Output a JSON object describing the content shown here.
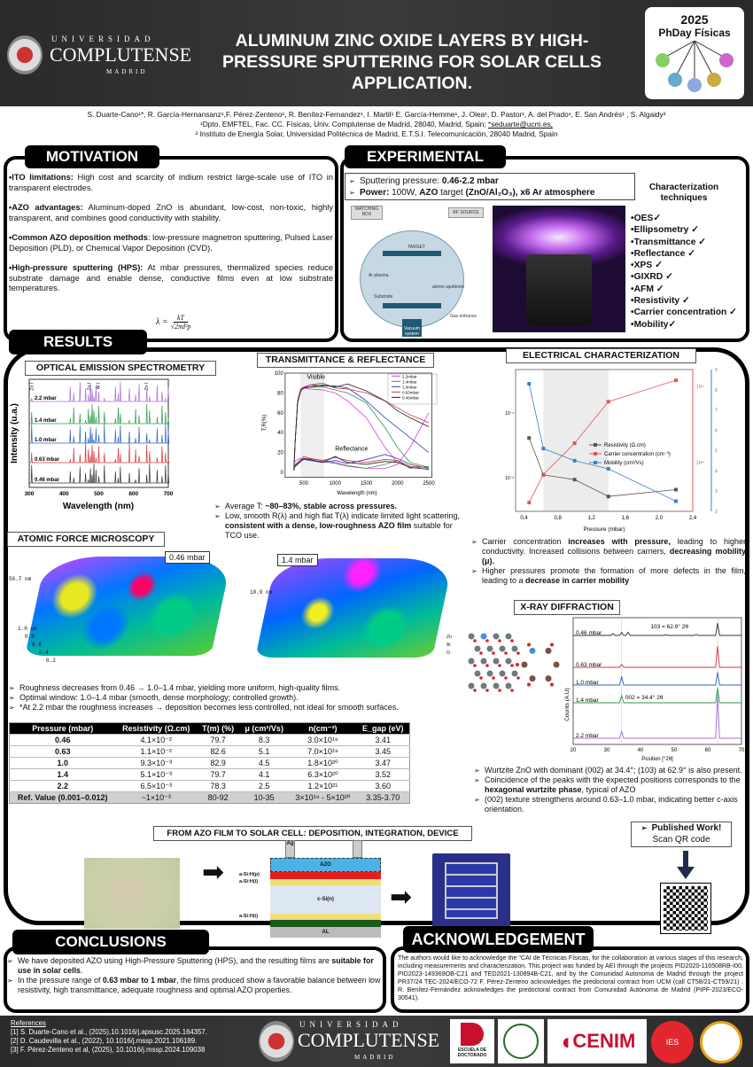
{
  "header": {
    "title": "ALUMINUM ZINC OXIDE LAYERS BY HIGH-PRESSURE SPUTTERING FOR SOLAR CELLS APPLICATION.",
    "logo_univ": "UNIVERSIDAD",
    "logo_name": "COMPLUTENSE",
    "logo_city": "MADRID",
    "event_year": "2025",
    "event_name": "PhDay Físicas"
  },
  "authors": {
    "line1": "S. Duarte-Cano¹*, R. García-Hernansanz¹,F. Pérez-Zenteno¹, R. Benítez-Fernandez¹, I. Martil¹ E. García-Hemme¹, J. Olea¹, D. Pastor¹, A. del Prado¹, E. San Andrés¹ , S. Algaidy²",
    "line2": "¹Dpto. EMFTEL, Fac. CC. Físicas, Univ. Complutense de Madrid, 28040, Madrid, Spain; ",
    "email": "*seduarte@ucm.es,",
    "line3": "² Instituto de Energía Solar, Universidad Politécnica de Madrid, E.T.S.I. Telecomunicación, 28040 Madrid, Spain"
  },
  "motivation": {
    "tab": "MOTIVATION",
    "items": [
      [
        [
          "•ITO limitations:",
          true
        ],
        [
          " High cost and scarcity of indium restrict large-scale use of ITO in transparent electrodes.",
          false
        ]
      ],
      [
        [
          "•AZO advantages:",
          true
        ],
        [
          " Aluminum-doped ZnO is abundant, low-cost, non-toxic, highly transparent, and combines good conductivity with stability.",
          false
        ]
      ],
      [
        [
          "•Common AZO deposition methods",
          true
        ],
        [
          ": low-pressure magnetron sputtering, Pulsed Laser Deposition (PLD), or Chemical Vapor Deposition (CVD).",
          false
        ]
      ],
      [
        [
          "•High-pressure sputtering (HPS):",
          true
        ],
        [
          " At mbar pressures, thermalized species reduce substrate damage and enable dense, conductive films even at low substrate temperatures.",
          false
        ]
      ]
    ],
    "formula_lhs": "λ =",
    "formula_num": "kT",
    "formula_den": "√2πd²p"
  },
  "experimental": {
    "tab": "EXPERIMENTAL",
    "bullets": [
      [
        [
          "Sputtering pressure: ",
          false
        ],
        [
          "0.46-2.2 mbar",
          true
        ]
      ],
      [
        [
          "Power:",
          true
        ],
        [
          " 100W, ",
          false
        ],
        [
          "AZO",
          true
        ],
        [
          " target ",
          false
        ],
        [
          "(ZnO/Al₂O₃)",
          true
        ],
        [
          ", x6 Ar atmosphere",
          true
        ]
      ]
    ],
    "schematic": {
      "matching": "MATCHING BOX",
      "rf": "RF SOURCE",
      "target": "TARGET",
      "plasma": "Ar plasma",
      "sputtered": "atoms sputtered",
      "substrate": "Substrate",
      "gas": "Gas entrance",
      "vacuum": "Vacuum system"
    },
    "char_title": "Characterization techniques",
    "techniques": [
      "•OES✓",
      "•Ellipsometry ✓",
      "•Transmittance ✓",
      "•Reflectance ✓",
      "•XPS ✓",
      "•GIXRD ✓",
      "•AFM ✓",
      "•Resistivity ✓",
      "•Carrier concentration ✓",
      "•Mobility✓"
    ]
  },
  "results": {
    "tab": "RESULTS",
    "oes_title": "OPTICAL EMISSION SPECTROMETRY",
    "tr_title": "TRANSMITTANCE & REFLECTANCE",
    "tr_bullets": [
      [
        [
          "Average T: ",
          false
        ],
        [
          "~80–83%, stable across pressures.",
          true
        ]
      ],
      [
        [
          "Low, smooth R(λ) and high flat T(λ) indicate limited light scattering, ",
          false
        ],
        [
          "consistent with a dense, low-roughness AZO film",
          true
        ],
        [
          " suitable for TCO use.",
          false
        ]
      ]
    ],
    "elec_title": "ELECTRICAL CHARACTERIZATION",
    "elec_bullets": [
      [
        [
          "Carrier concentration ",
          false
        ],
        [
          "increases with pressure,",
          true
        ],
        [
          " leading to higher conductivity. Increased collisions between carriers, ",
          false
        ],
        [
          "decreasing mobility (μ).",
          true
        ]
      ],
      [
        [
          "Higher pressures promote the formation of more defects in the film, leading to a ",
          false
        ],
        [
          "decrease in carrier mobility",
          true
        ]
      ]
    ],
    "afm_title": "ATOMIC FORCE MICROSCOPY",
    "afm_left_label": "0.46 mbar",
    "afm_left_z": "56.7 nm",
    "afm_right_label": "1.4 mbar",
    "afm_right_z": "10.9 nm",
    "afm_axis": [
      "0.2",
      "0.4",
      "0.6",
      "0.8",
      "1.0 um"
    ],
    "afm_bullets": [
      [
        [
          "Roughness decreases from 0.46 → 1.0–1.4 mbar, yielding more uniform, high-quality films.",
          false
        ]
      ],
      [
        [
          "Optimal window: 1.0–1.4 mbar (smooth, dense morphology; controlled growth).",
          false
        ]
      ],
      [
        [
          "*At 2.2 mbar the roughness increases → deposition becomes less controlled, not ideal for smooth surfaces.",
          false
        ]
      ]
    ],
    "table": {
      "headers": [
        "Pressure (mbar)",
        "Resistivity (Ω.cm)",
        "T(m) (%)",
        "μ (cm²/Vs)",
        "n(cm⁻³)",
        "E_gap (eV)"
      ],
      "rows": [
        [
          "0.46",
          "4.1×10⁻²",
          "79.7",
          "8.3",
          "3.0×10¹⁹",
          "3.41"
        ],
        [
          "0.63",
          "1.1×10⁻²",
          "82.6",
          "5.1",
          "7.0×10¹⁹",
          "3.45"
        ],
        [
          "1.0",
          "9.3×10⁻³",
          "82.9",
          "4.5",
          "1.8×10²⁰",
          "3.47"
        ],
        [
          "1.4",
          "5.1×10⁻³",
          "79.7",
          "4.1",
          "6.3×10²⁰",
          "3.52"
        ],
        [
          "2.2",
          "6.5×10⁻³",
          "78.3",
          "2.5",
          "1.2×10²¹",
          "3.60"
        ],
        [
          "Ref. Value (0.001–0.012)",
          "~1×10⁻³",
          "80-92",
          "10-35",
          "3×10¹⁹ - 5×10²⁰",
          "3.35-3.70"
        ]
      ]
    },
    "xrd_title": "X-RAY DIFFRACTION",
    "crystal_legend": [
      "Zn",
      "Al",
      "O"
    ],
    "xrd_bullets": [
      [
        [
          "Wurtzite ZnO with dominant (002) at 34.4°; (103) at 62.9° is also present.",
          false
        ]
      ],
      [
        [
          "Coincidence of the peaks with the expected positions corresponds to the ",
          false
        ],
        [
          "hexagonal wurtzite phase",
          true
        ],
        [
          ", typical of AZO",
          false
        ]
      ],
      [
        [
          "(002) texture strengthens around 0.63–1.0 mbar, indicating better c-axis orientation.",
          false
        ]
      ]
    ],
    "device_title": "FROM AZO FILM TO SOLAR CELL: DEPOSITION, INTEGRATION, DEVICE",
    "layers": {
      "ag": "Ag",
      "azo": "AZO",
      "p": "a-Si:H(p)",
      "i1": "a-Si:H(i)",
      "c": "c-Si(n)",
      "i2": "a-Si:H(i)",
      "n": "a-Si:H(n)",
      "al": "AL"
    },
    "published": "Published Work!",
    "scan": "Scan QR code"
  },
  "conclusions": {
    "tab": "CONCLUSIONS",
    "items": [
      [
        [
          "We have deposited AZO using High-Pressure Sputtering (HPS), and the resulting films are ",
          false
        ],
        [
          "suitable for use in solar cells",
          true
        ],
        [
          ".",
          false
        ]
      ],
      [
        [
          "In the pressure range of ",
          false
        ],
        [
          "0.63 mbar to 1 mbar",
          true
        ],
        [
          ", the films produced show a favorable balance between low resistivity, high transmittance, adequate roughness and optimal AZO properties.",
          false
        ]
      ]
    ]
  },
  "acknowledgement": {
    "tab": "ACKNOWLEDGEMENT",
    "text": "The authors would like to acknowledge the \"CAI de Técnicas Físicas, for the collaboration at various stages of this research, including measurements and characterization. This project was funded by AEI through the projects PID2020-116508RB-I00, PID2023-149369OB-C21 and TED2021-130894B-C21, and by the Comunidad Autonoma de Madrid through the project PR37/24 TEC-2024/ECO-72 F. Pérez-Zenteno acknowledges the predoctoral contract from UCM (call CT58/21-CT59/21) . R. Benítez-Fernández acknowledges the predoctoral contract from Comunidad Autónoma de Madrid (PIPF-2023/ECO-30541)."
  },
  "references": {
    "title": "References",
    "items": [
      "[1] S. Duarte-Cano et al., (2025),10.1016/j.apsusc.2025.164357.",
      "[2] D. Caudevilla et al., (2022), 10.1016/j.mssp.2021.106189.",
      "[3] F. Pérez-Zenteno et al, (2025), 10.1016/j.mssp.2024.109038"
    ]
  },
  "footer_logos": {
    "doct": "ESCUELA DE DOCTORADO",
    "cenim": "CENIM",
    "ies": "IES"
  },
  "colors": {
    "2.2": "#a86fd6",
    "1.4": "#2e9a4c",
    "1.0": "#2f62c2",
    "0.63": "#d8353c",
    "0.46": "#333333",
    "res": "#555555",
    "carrier": "#e05555",
    "mob": "#3b7fd0"
  },
  "chart_data": [
    {
      "type": "line",
      "title": "OPTICAL EMISSION SPECTROMETRY",
      "xlabel": "Wavelength (nm)",
      "ylabel": "Intensity (u.a.)",
      "xlim": [
        300,
        700
      ],
      "xticks": [
        "300",
        "400",
        "500",
        "600",
        "700"
      ],
      "series": [
        "2.2 mbar",
        "1.4 mbar",
        "1.0 mbar",
        "0.63 mbar",
        "0.46 mbar"
      ],
      "line_labels": [
        "Zn I",
        "Zn I",
        "Al I",
        "Zn I"
      ],
      "line_positions": [
        307,
        472,
        482,
        636
      ],
      "peaks": [
        307,
        418,
        428,
        446,
        462,
        470,
        476,
        481,
        486,
        492,
        500,
        516,
        548,
        556,
        562,
        588,
        606,
        616,
        638,
        646,
        668,
        682,
        692,
        700
      ]
    },
    {
      "type": "line",
      "title": "TRANSMITTANCE & REFLECTANCE",
      "xlabel": "Wavelength (nm)",
      "ylabel": "T,R(%)",
      "xlim": [
        200,
        2550
      ],
      "ylim": [
        -5,
        100
      ],
      "xticks": [
        "500",
        "1000",
        "1500",
        "2000",
        "2500"
      ],
      "yticks": [
        "0",
        "20",
        "40",
        "60",
        "80",
        "100"
      ],
      "annotations": [
        "Visible",
        "Reflectance"
      ],
      "x": [
        340,
        360,
        400,
        450,
        500,
        600,
        800,
        1000,
        1200,
        1500,
        1800,
        2000,
        2200,
        2500
      ],
      "series": [
        {
          "name": "2.2mbar",
          "T": [
            2,
            30,
            70,
            82,
            85,
            84,
            83,
            80,
            72,
            55,
            25,
            10,
            5,
            3
          ],
          "R": [
            10,
            11,
            13,
            14,
            13,
            14,
            12,
            10,
            7,
            4,
            4,
            8,
            25,
            60
          ]
        },
        {
          "name": "1.4mbar",
          "T": [
            2,
            30,
            72,
            84,
            86,
            86,
            86,
            83,
            80,
            70,
            45,
            25,
            10,
            5
          ],
          "R": [
            5,
            7,
            10,
            12,
            14,
            12,
            11,
            9,
            6,
            4,
            8,
            12,
            4,
            6
          ]
        },
        {
          "name": "1.0mbar",
          "T": [
            2,
            30,
            72,
            84,
            85,
            88,
            87,
            87,
            85,
            72,
            55,
            45,
            35,
            20
          ],
          "R": [
            5,
            6,
            9,
            11,
            13,
            12,
            10,
            12,
            9,
            13,
            18,
            14,
            8,
            4
          ]
        },
        {
          "name": "0.63mbar",
          "T": [
            2,
            30,
            72,
            84,
            86,
            88,
            90,
            85,
            84,
            80,
            72,
            65,
            58,
            50
          ],
          "R": [
            6,
            8,
            10,
            13,
            16,
            14,
            12,
            15,
            12,
            10,
            13,
            12,
            6,
            5
          ]
        },
        {
          "name": "0.46mbar",
          "T": [
            2,
            30,
            70,
            82,
            85,
            86,
            88,
            86,
            89,
            82,
            72,
            62,
            55,
            46
          ],
          "R": [
            4,
            6,
            8,
            11,
            14,
            13,
            10,
            16,
            10,
            8,
            11,
            10,
            5,
            3
          ]
        }
      ]
    },
    {
      "type": "line",
      "title": "ELECTRICAL CHARACTERIZATION",
      "xlabel": "Pressure (mbar)",
      "xlim": [
        0.3,
        2.4
      ],
      "xticks": [
        "0,4",
        "0,8",
        "1,2",
        "1,6",
        "2,0",
        "2,4"
      ],
      "yleft": {
        "scale": "log",
        "lim": [
          0.003,
          0.47
        ],
        "ticks": [
          "10⁻¹",
          "10⁻²"
        ]
      },
      "yright1": {
        "scale": "log",
        "lim": [
          2.3e+19,
          1.66e+21
        ],
        "ticks": [
          "10²¹",
          "10²⁰"
        ]
      },
      "yright2": {
        "lim": [
          2,
          9
        ],
        "ticks": [
          "2",
          "3",
          "4",
          "5",
          "6",
          "7",
          "8",
          "9"
        ]
      },
      "highlight": [
        0.63,
        1.4
      ],
      "x": [
        0.46,
        0.63,
        1.0,
        1.4,
        2.2
      ],
      "series": [
        {
          "name": "Resistivity (Ω.cm)",
          "values": [
            0.041,
            0.011,
            0.0093,
            0.0051,
            0.0065
          ]
        },
        {
          "name": "Carrier concentration (cm⁻³)",
          "values": [
            3e+19,
            7e+19,
            1.8e+20,
            6.3e+20,
            1.2e+21
          ]
        },
        {
          "name": "Mobility (cm²/Vs)",
          "values": [
            8.3,
            5.1,
            4.5,
            4.1,
            2.5
          ]
        }
      ]
    },
    {
      "type": "line",
      "title": "X-RAY DIFFRACTION",
      "xlabel": "Position [°2θ]",
      "ylabel": "Counts (A.U)",
      "xlim": [
        20,
        70
      ],
      "xticks": [
        "20",
        "30",
        "40",
        "50",
        "60",
        "70"
      ],
      "annotations": [
        "103 = 62.9° 2θ",
        "002 = 34.4° 2θ"
      ],
      "series": [
        {
          "name": "0.46 mbar",
          "peaks": [
            [
              31.8,
              0.15
            ],
            [
              34.4,
              0.25
            ],
            [
              36.3,
              0.25
            ],
            [
              47.5,
              0.06
            ],
            [
              56.6,
              0.08
            ],
            [
              62.9,
              1.0
            ]
          ]
        },
        {
          "name": "0.63 mbar",
          "peaks": [
            [
              34.4,
              0.2
            ],
            [
              62.9,
              1.5
            ]
          ]
        },
        {
          "name": "1.0 mbar",
          "peaks": [
            [
              34.4,
              0.8
            ],
            [
              62.9,
              1.2
            ]
          ]
        },
        {
          "name": "1.4 mbar",
          "peaks": [
            [
              34.4,
              0.6
            ],
            [
              62.9,
              1.2
            ]
          ]
        },
        {
          "name": "2.2 mbar",
          "peaks": [
            [
              34.4,
              0.4
            ],
            [
              62.9,
              2.5
            ]
          ]
        }
      ]
    }
  ]
}
